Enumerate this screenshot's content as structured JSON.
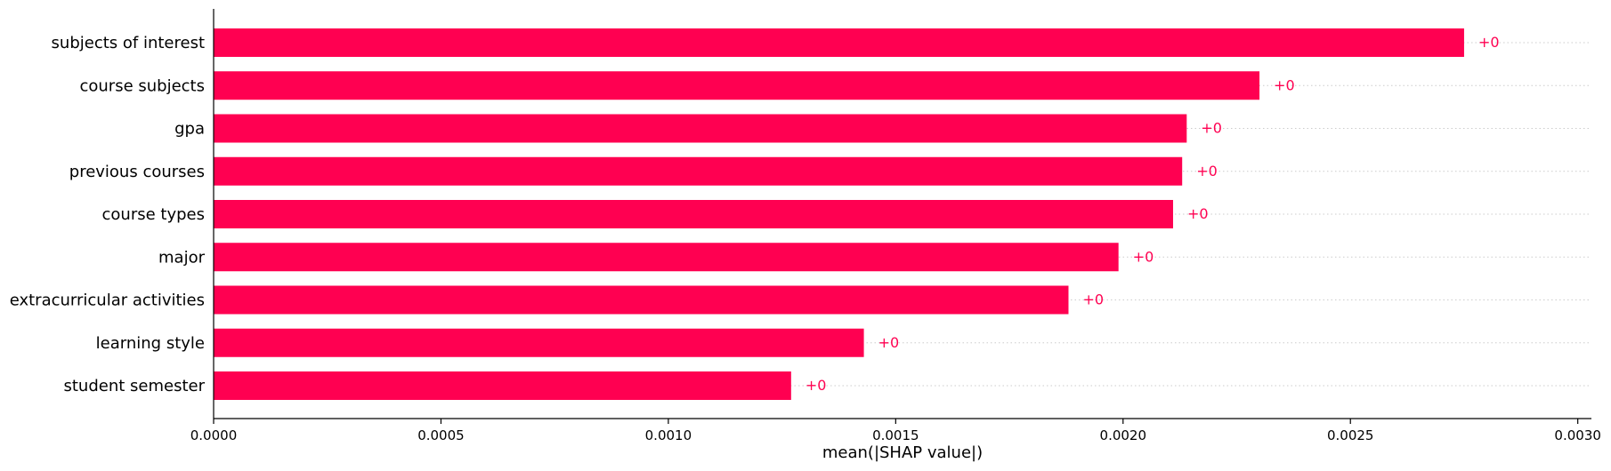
{
  "chart_data": {
    "type": "bar",
    "orientation": "horizontal",
    "categories": [
      "subjects of interest",
      "course subjects",
      "gpa",
      "previous courses",
      "course types",
      "major",
      "extracurricular activities",
      "learning style",
      "student semester"
    ],
    "values": [
      0.00275,
      0.0023,
      0.00214,
      0.00213,
      0.00211,
      0.00199,
      0.00188,
      0.00143,
      0.00127
    ],
    "value_labels": [
      "+0",
      "+0",
      "+0",
      "+0",
      "+0",
      "+0",
      "+0",
      "+0",
      "+0"
    ],
    "xlabel": "mean(|SHAP value|)",
    "xlim": [
      0,
      0.00303
    ],
    "xticks": [
      0.0,
      0.0005,
      0.001,
      0.0015,
      0.002,
      0.0025,
      0.003
    ],
    "xtick_labels": [
      "0.0000",
      "0.0005",
      "0.0010",
      "0.0015",
      "0.0020",
      "0.0025",
      "0.0030"
    ],
    "grid": "dotted horizontal lines per bar",
    "colors": {
      "bar": "#ff0051",
      "value_label": "#ff0051",
      "axis": "#000000",
      "grid": "#cccccc"
    }
  }
}
